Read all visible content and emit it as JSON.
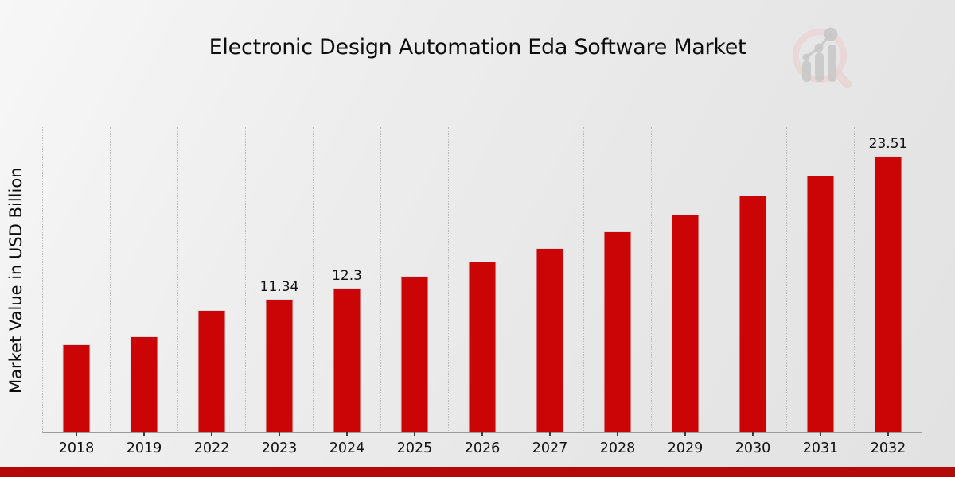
{
  "page": {
    "background_top_color": "#f7f7f7",
    "background_bottom_color": "#e2e2e2"
  },
  "header": {
    "title": "Electronic Design Automation Eda Software Market"
  },
  "logo": {
    "icon": "magnifier-with-bar-chart-watermark",
    "ring_color": "#ecd0d0",
    "glyph_color": "#c7c7c7"
  },
  "chart_data": {
    "type": "bar",
    "title": "Electronic Design Automation Eda Software Market",
    "xlabel": "",
    "ylabel": "Market Value in USD Billion",
    "categories": [
      "2018",
      "2019",
      "2022",
      "2023",
      "2024",
      "2025",
      "2026",
      "2027",
      "2028",
      "2029",
      "2030",
      "2031",
      "2032"
    ],
    "values": [
      7.5,
      8.2,
      10.4,
      11.34,
      12.3,
      13.3,
      14.5,
      15.7,
      17.1,
      18.5,
      20.1,
      21.8,
      23.51
    ],
    "bar_labels": [
      "",
      "",
      "",
      "11.34",
      "12.3",
      "",
      "",
      "",
      "",
      "",
      "",
      "",
      "23.51"
    ],
    "ylim": [
      0,
      26
    ],
    "y_axis_ticks_visible": false,
    "grid": "vertical dotted lines at category boundaries",
    "legend": "none",
    "bar_color": "#cb0505",
    "axis_color": "#9b9b9b",
    "gridline_color": "#b9b9b9"
  },
  "footer": {
    "band_color": "#b40909"
  }
}
